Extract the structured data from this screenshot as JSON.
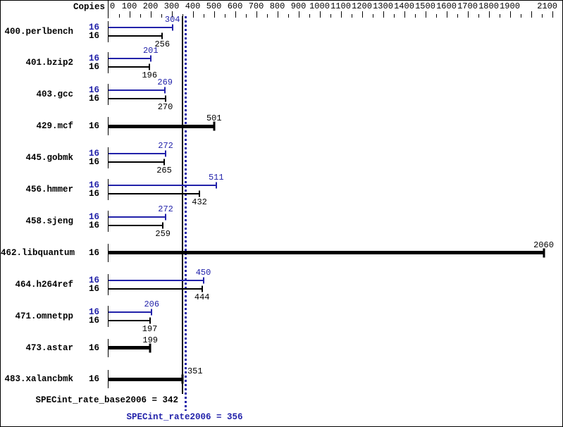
{
  "header": {
    "copies_label": "Copies"
  },
  "chart_data": {
    "type": "bar",
    "orientation": "horizontal",
    "title": "",
    "x_axis": {
      "min": 0,
      "max": 2100,
      "minor_tick_step": 50,
      "major_tick_step": 100,
      "tick_label_values": [
        0,
        100,
        200,
        300,
        400,
        500,
        600,
        700,
        800,
        900,
        1000,
        1100,
        1200,
        1300,
        1400,
        1500,
        1600,
        1700,
        1800,
        1900,
        2100
      ]
    },
    "grid": false,
    "legend_position": "none",
    "colors": {
      "peak": "#2222aa",
      "base": "#000000",
      "background": "#ffffff"
    },
    "benchmarks": [
      {
        "name": "400.perlbench",
        "copies": 16,
        "peak": 304,
        "base": 256
      },
      {
        "name": "401.bzip2",
        "copies": 16,
        "peak": 201,
        "base": 196
      },
      {
        "name": "403.gcc",
        "copies": 16,
        "peak": 269,
        "base": 270
      },
      {
        "name": "429.mcf",
        "copies": 16,
        "peak": null,
        "base": 501
      },
      {
        "name": "445.gobmk",
        "copies": 16,
        "peak": 272,
        "base": 265
      },
      {
        "name": "456.hmmer",
        "copies": 16,
        "peak": 511,
        "base": 432
      },
      {
        "name": "458.sjeng",
        "copies": 16,
        "peak": 272,
        "base": 259
      },
      {
        "name": "462.libquantum",
        "copies": 16,
        "peak": null,
        "base": 2060
      },
      {
        "name": "464.h264ref",
        "copies": 16,
        "peak": 450,
        "base": 444
      },
      {
        "name": "471.omnetpp",
        "copies": 16,
        "peak": 206,
        "base": 197
      },
      {
        "name": "473.astar",
        "copies": 16,
        "peak": null,
        "base": 199
      },
      {
        "name": "483.xalancbmk",
        "copies": 16,
        "peak": null,
        "base": 351,
        "value_label_dx": 18
      }
    ],
    "reference_lines": [
      {
        "id": "base-mean",
        "label": "SPECint_rate_base2006 = 342",
        "value": 342,
        "style": "solid",
        "color": "#000000"
      },
      {
        "id": "peak-mean",
        "label": "SPECint_rate2006 = 356",
        "value": 356,
        "style": "dotted",
        "color": "#2222aa"
      }
    ]
  }
}
